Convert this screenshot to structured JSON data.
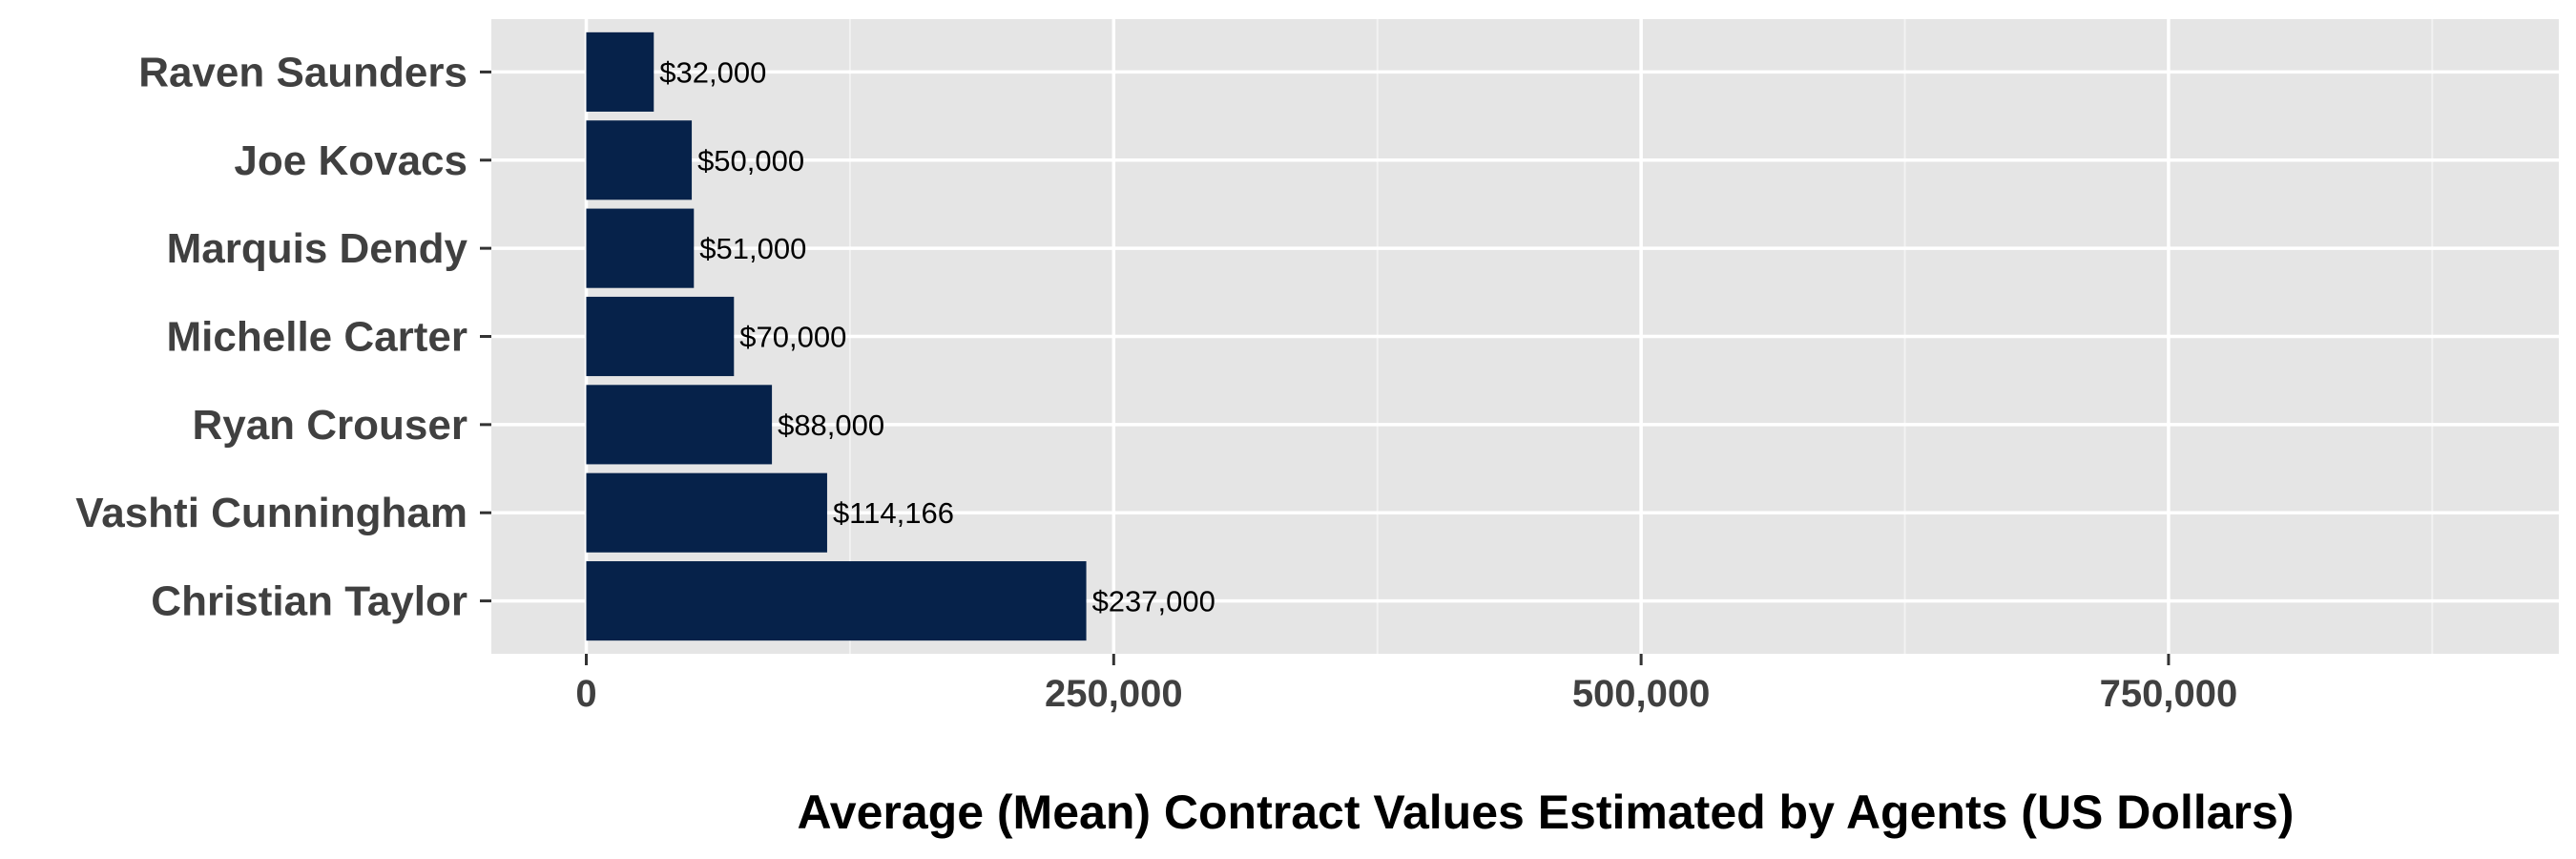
{
  "chart_data": {
    "type": "bar",
    "orientation": "horizontal",
    "categories": [
      "Christian Taylor",
      "Vashti Cunningham",
      "Ryan Crouser",
      "Michelle Carter",
      "Marquis Dendy",
      "Joe Kovacs",
      "Raven Saunders"
    ],
    "values": [
      237000,
      114166,
      88000,
      70000,
      51000,
      50000,
      32000
    ],
    "value_labels": [
      "$237,000",
      "$114,166",
      "$88,000",
      "$70,000",
      "$51,000",
      "$50,000",
      "$32,000"
    ],
    "title": "",
    "xlabel": "Average (Mean) Contract Values Estimated by Agents (US Dollars)",
    "ylabel": "",
    "xlim": [
      -45000,
      935000
    ],
    "x_ticks": [
      0,
      250000,
      500000,
      750000
    ],
    "x_tick_labels": [
      "0",
      "250,000",
      "500,000",
      "750,000"
    ],
    "grid": true,
    "legend": "none",
    "colors": {
      "bar": "#06224A",
      "panel_background": "#E5E5E5",
      "grid_major": "#FFFFFF",
      "grid_minor": "#F2F2F2"
    }
  }
}
